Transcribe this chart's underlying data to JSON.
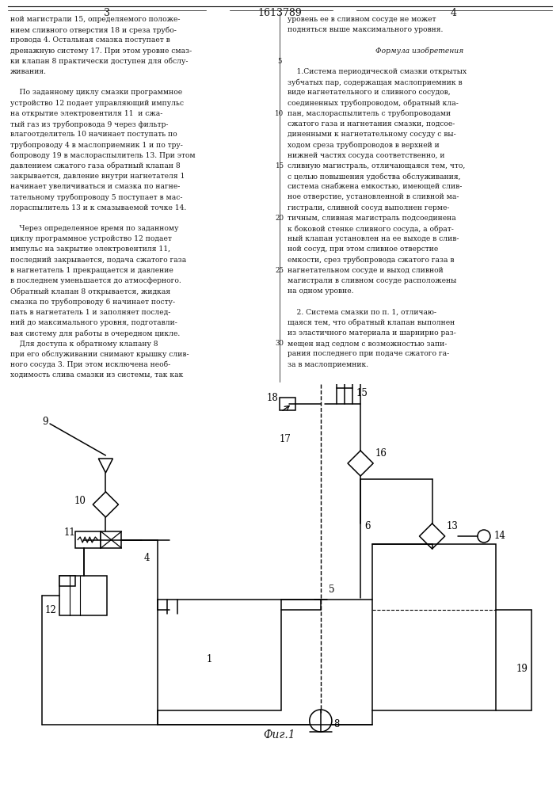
{
  "title_number": "1613789",
  "page_left": "3",
  "page_right": "4",
  "fig_caption": "Фиг.1",
  "bg_color": "#ffffff",
  "text_color": "#1a1a1a",
  "line_color": "#000000"
}
